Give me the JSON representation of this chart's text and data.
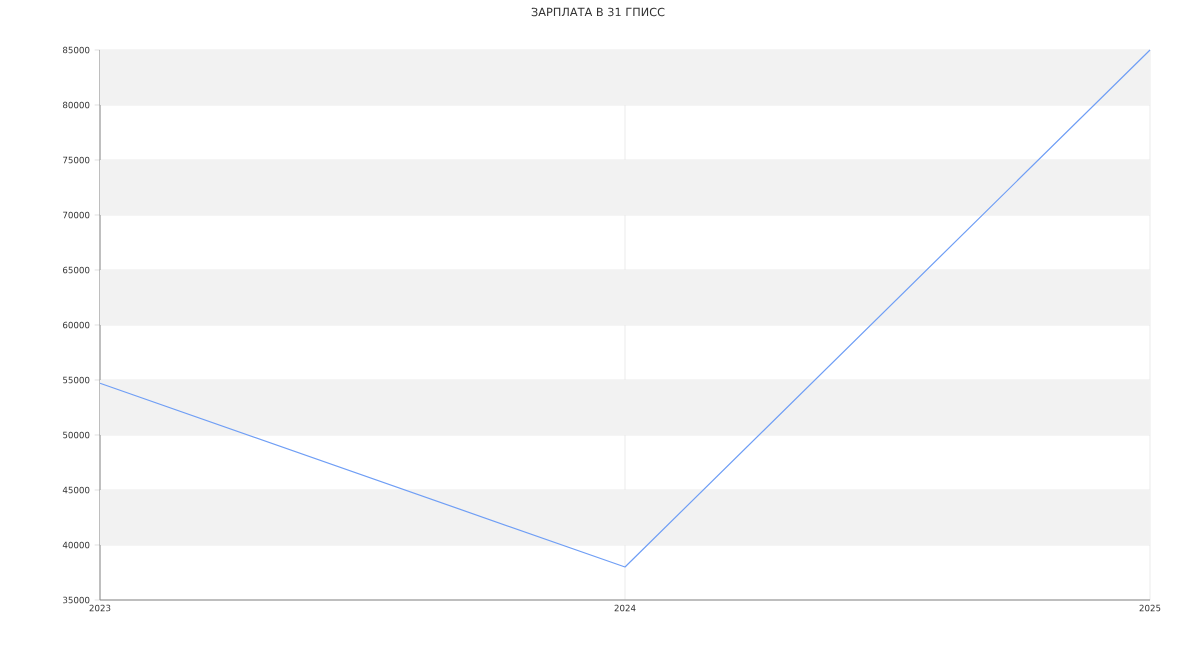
{
  "chart_data": {
    "type": "line",
    "title": "ЗАРПЛАТА В 31 ГПИСС",
    "x": [
      2023,
      2024,
      2025
    ],
    "series": [
      {
        "color": "#6f9ef5",
        "values": [
          54700,
          38000,
          85000
        ]
      }
    ],
    "xlim": [
      2023,
      2025
    ],
    "xticks": [
      2023,
      2024,
      2025
    ],
    "ylim": [
      35000,
      85000
    ],
    "yticks": [
      35000,
      40000,
      45000,
      50000,
      55000,
      60000,
      65000,
      70000,
      75000,
      80000,
      85000
    ],
    "grid": true,
    "marker": "none",
    "line_style": "solid",
    "bands": [
      {
        "axis": "y",
        "from": 40000,
        "to": 45000,
        "color": "#f2f2f2"
      },
      {
        "axis": "y",
        "from": 50000,
        "to": 55000,
        "color": "#f2f2f2"
      },
      {
        "axis": "y",
        "from": 60000,
        "to": 65000,
        "color": "#f2f2f2"
      },
      {
        "axis": "y",
        "from": 70000,
        "to": 75000,
        "color": "#f2f2f2"
      },
      {
        "axis": "y",
        "from": 80000,
        "to": 85000,
        "color": "#f2f2f2"
      }
    ]
  }
}
